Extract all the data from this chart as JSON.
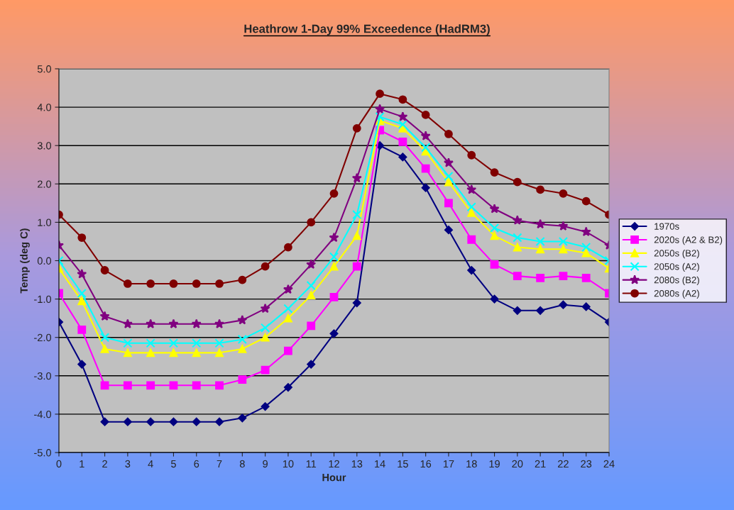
{
  "chart_data": {
    "type": "line",
    "title": "Heathrow 1-Day 99% Exceedence (HadRM3)",
    "xlabel": "Hour",
    "ylabel": "Temp (deg C)",
    "categories": [
      "0",
      "1",
      "2",
      "3",
      "4",
      "5",
      "6",
      "7",
      "8",
      "9",
      "10",
      "11",
      "12",
      "13",
      "14",
      "15",
      "16",
      "17",
      "18",
      "19",
      "20",
      "21",
      "22",
      "23",
      "24"
    ],
    "ylim": [
      -5,
      5
    ],
    "yticks": [
      {
        "value": -5,
        "label": "-5.0"
      },
      {
        "value": -4,
        "label": "-4.0"
      },
      {
        "value": -3,
        "label": "-3.0"
      },
      {
        "value": -2,
        "label": "-2.0"
      },
      {
        "value": -1,
        "label": "-1.0"
      },
      {
        "value": 0,
        "label": "0.0"
      },
      {
        "value": 1,
        "label": "1.0"
      },
      {
        "value": 2,
        "label": "2.0"
      },
      {
        "value": 3,
        "label": "3.0"
      },
      {
        "value": 4,
        "label": "4.0"
      },
      {
        "value": 5,
        "label": "5.0"
      }
    ],
    "grid": "y",
    "legend": "right",
    "line_style": "solid",
    "series": [
      {
        "name": "1970s",
        "color": "#000080",
        "marker": "diamond",
        "values": [
          -1.6,
          -2.7,
          -4.2,
          -4.2,
          -4.2,
          -4.2,
          -4.2,
          -4.2,
          -4.1,
          -3.8,
          -3.3,
          -2.7,
          -1.9,
          -1.1,
          3.0,
          2.7,
          1.9,
          0.8,
          -0.25,
          -1.0,
          -1.3,
          -1.3,
          -1.15,
          -1.2,
          -1.6
        ]
      },
      {
        "name": "2020s (A2 & B2)",
        "color": "#ff00ff",
        "marker": "square",
        "values": [
          -0.85,
          -1.8,
          -3.25,
          -3.25,
          -3.25,
          -3.25,
          -3.25,
          -3.25,
          -3.1,
          -2.85,
          -2.35,
          -1.7,
          -0.95,
          -0.15,
          3.4,
          3.1,
          2.4,
          1.5,
          0.55,
          -0.1,
          -0.4,
          -0.45,
          -0.4,
          -0.45,
          -0.85
        ]
      },
      {
        "name": "2050s (B2)",
        "color": "#ffff00",
        "marker": "triangle",
        "values": [
          -0.2,
          -1.05,
          -2.3,
          -2.4,
          -2.4,
          -2.4,
          -2.4,
          -2.4,
          -2.3,
          -2.0,
          -1.5,
          -0.9,
          -0.15,
          0.65,
          3.65,
          3.45,
          2.85,
          2.05,
          1.25,
          0.65,
          0.35,
          0.3,
          0.3,
          0.2,
          -0.2
        ]
      },
      {
        "name": "2050s (A2)",
        "color": "#00ffff",
        "marker": "cross",
        "values": [
          0.0,
          -0.85,
          -2.0,
          -2.15,
          -2.15,
          -2.15,
          -2.15,
          -2.15,
          -2.05,
          -1.75,
          -1.25,
          -0.65,
          0.1,
          1.2,
          3.75,
          3.55,
          2.95,
          2.2,
          1.4,
          0.85,
          0.6,
          0.5,
          0.5,
          0.35,
          0.0
        ]
      },
      {
        "name": "2080s (B2)",
        "color": "#800080",
        "marker": "star",
        "values": [
          0.4,
          -0.35,
          -1.45,
          -1.65,
          -1.65,
          -1.65,
          -1.65,
          -1.65,
          -1.55,
          -1.25,
          -0.75,
          -0.1,
          0.6,
          2.15,
          3.95,
          3.75,
          3.25,
          2.55,
          1.85,
          1.35,
          1.05,
          0.95,
          0.9,
          0.75,
          0.4
        ]
      },
      {
        "name": "2080s (A2)",
        "color": "#800000",
        "marker": "circle",
        "values": [
          1.2,
          0.6,
          -0.25,
          -0.6,
          -0.6,
          -0.6,
          -0.6,
          -0.6,
          -0.5,
          -0.15,
          0.35,
          1.0,
          1.75,
          3.45,
          4.35,
          4.2,
          3.8,
          3.3,
          2.75,
          2.3,
          2.05,
          1.85,
          1.75,
          1.55,
          1.2
        ]
      }
    ]
  }
}
